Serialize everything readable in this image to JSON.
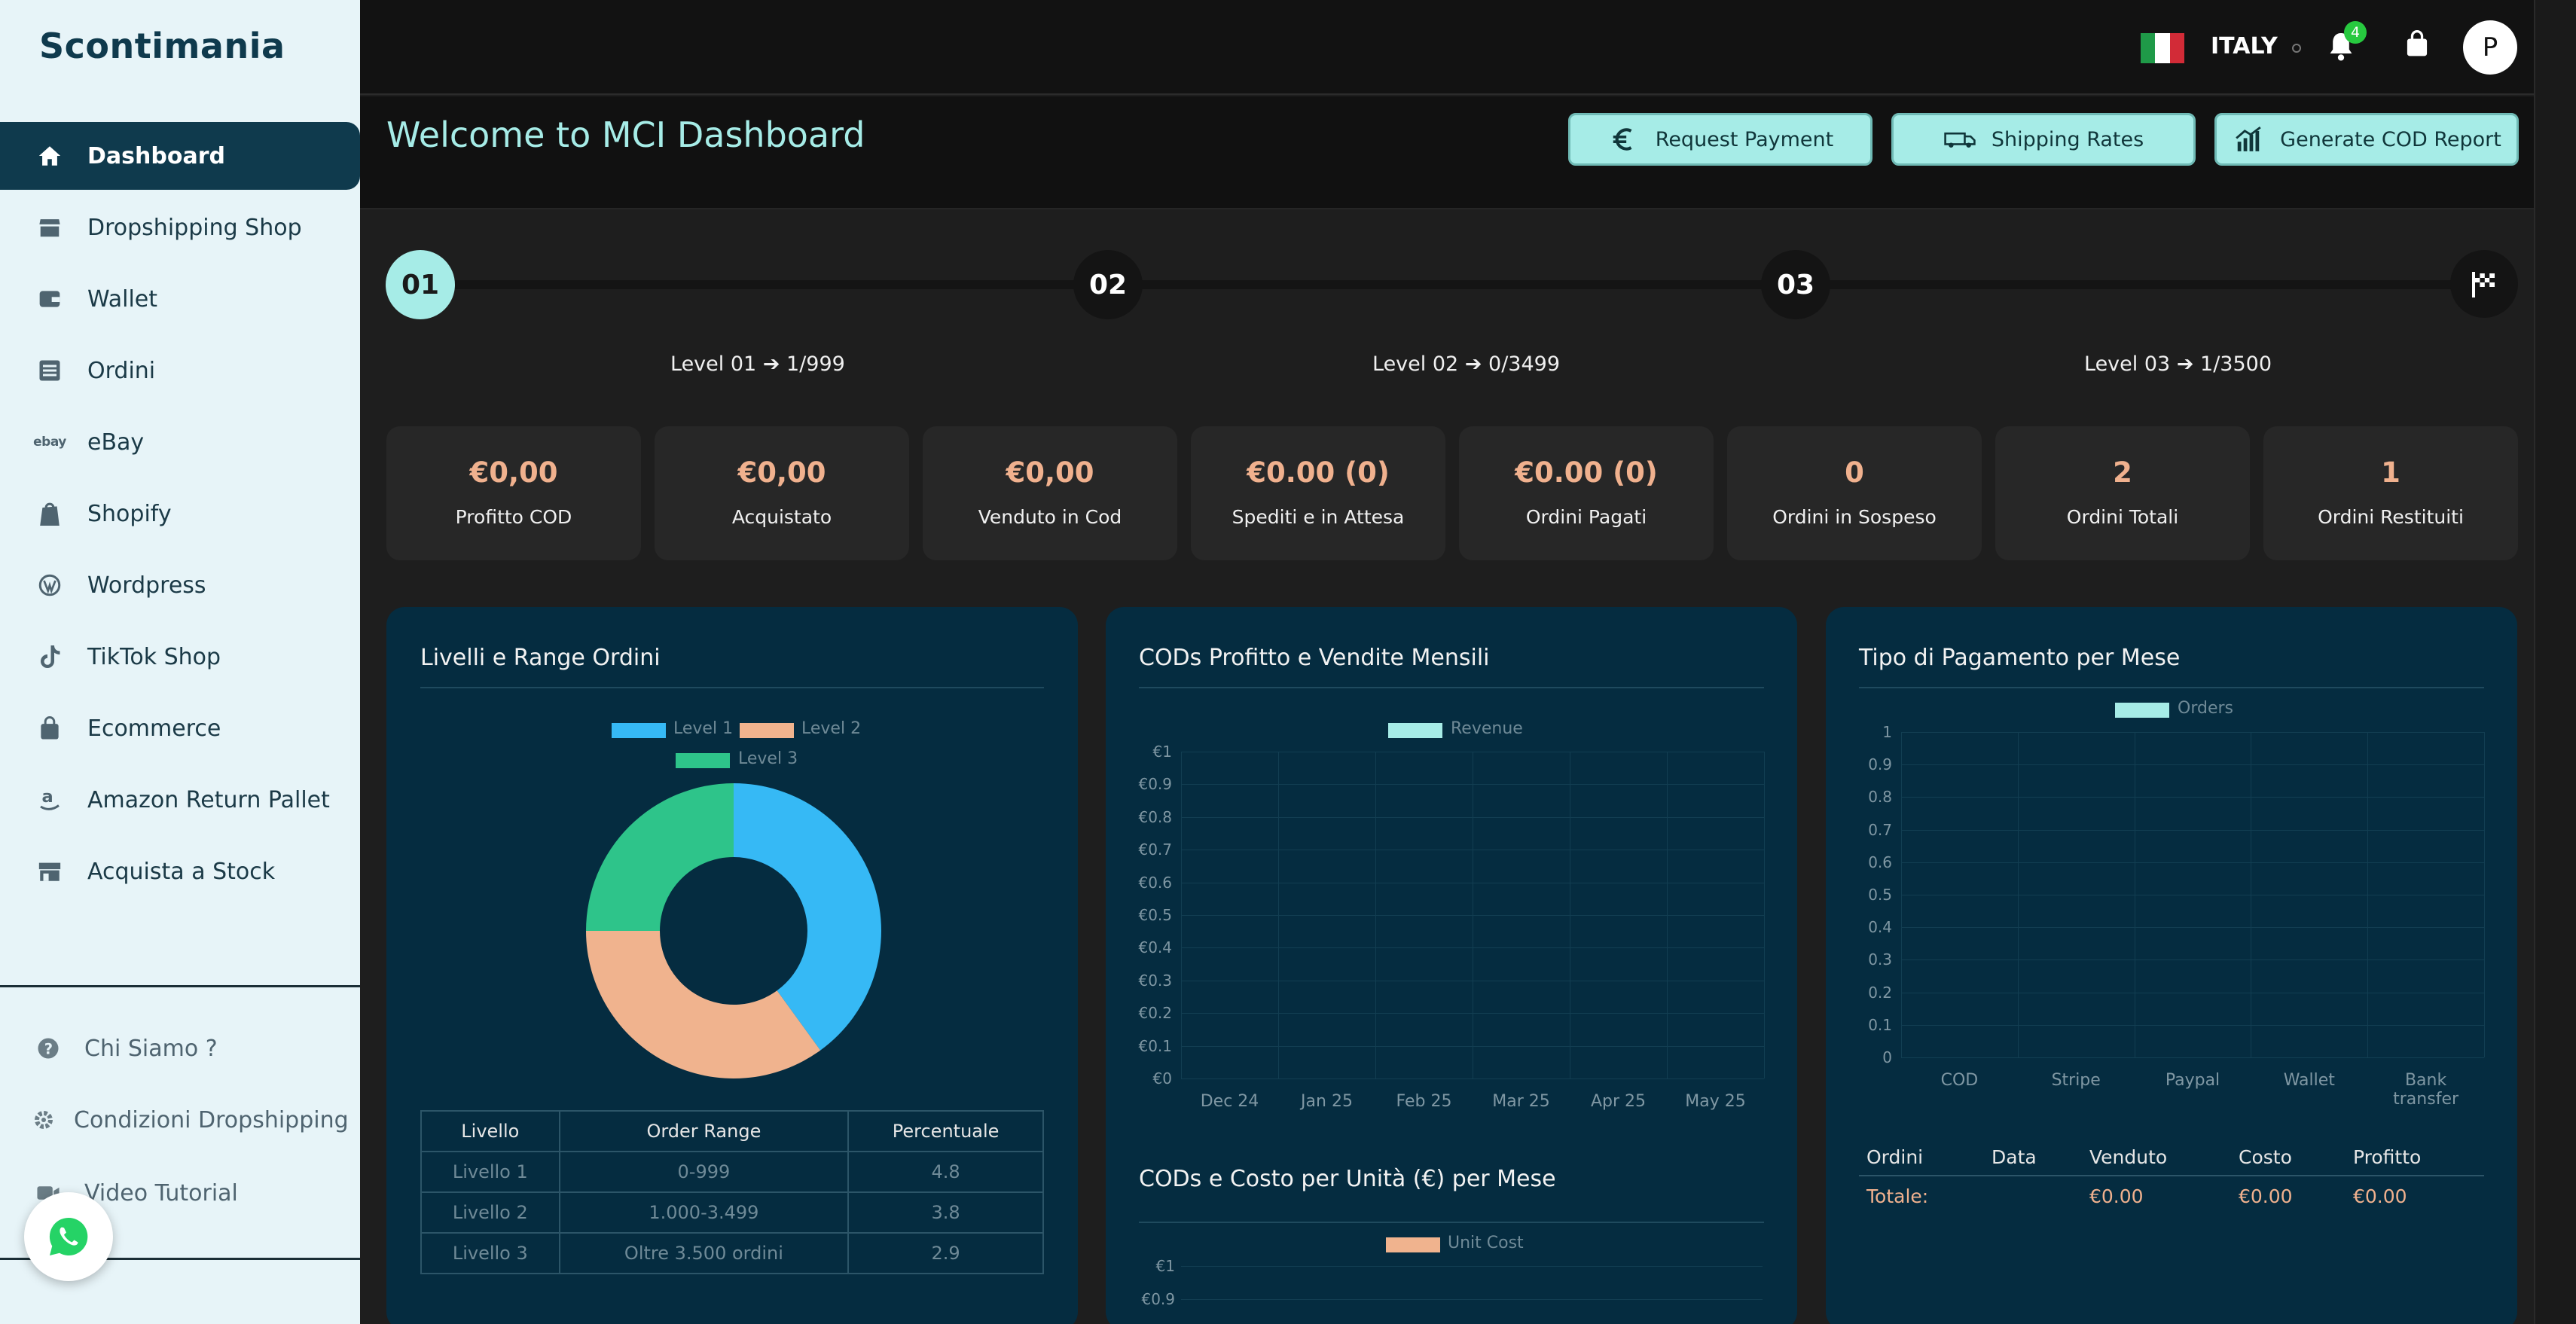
{
  "brand": {
    "logo": "Scontimania"
  },
  "sidebar": {
    "items": [
      {
        "label": "Dashboard",
        "icon": "home-icon",
        "active": true
      },
      {
        "label": "Dropshipping Shop",
        "icon": "store-icon"
      },
      {
        "label": "Wallet",
        "icon": "wallet-icon"
      },
      {
        "label": "Ordini",
        "icon": "list-icon"
      },
      {
        "label": "eBay",
        "icon": "ebay-icon"
      },
      {
        "label": "Shopify",
        "icon": "shopify-icon"
      },
      {
        "label": "Wordpress",
        "icon": "wordpress-icon"
      },
      {
        "label": "TikTok Shop",
        "icon": "tiktok-icon"
      },
      {
        "label": "Ecommerce",
        "icon": "bag-icon"
      },
      {
        "label": "Amazon Return Pallet",
        "icon": "amazon-icon"
      },
      {
        "label": "Acquista a Stock",
        "icon": "shop-icon"
      }
    ],
    "footer": [
      {
        "label": "Chi Siamo ?",
        "icon": "question-icon"
      },
      {
        "label": "Condizioni Dropshipping",
        "icon": "gear-icon"
      },
      {
        "label": "Video Tutorial",
        "icon": "video-icon"
      }
    ]
  },
  "topbar": {
    "country": "ITALY",
    "notifications": "4",
    "avatar_initial": "P"
  },
  "header": {
    "title": "Welcome to MCI Dashboard",
    "buttons": [
      {
        "label": "Request Payment",
        "icon": "euro-icon"
      },
      {
        "label": "Shipping Rates",
        "icon": "truck-icon"
      },
      {
        "label": "Generate COD Report",
        "icon": "report-chart-icon"
      }
    ]
  },
  "progress": {
    "steps": [
      "01",
      "02",
      "03"
    ],
    "levels": [
      {
        "name": "Level 01",
        "value": "1/999"
      },
      {
        "name": "Level 02",
        "value": "0/3499"
      },
      {
        "name": "Level 03",
        "value": "1/3500"
      }
    ]
  },
  "stats": [
    {
      "value": "€0,00",
      "label": "Profitto COD"
    },
    {
      "value": "€0,00",
      "label": "Acquistato"
    },
    {
      "value": "€0,00",
      "label": "Venduto in Cod"
    },
    {
      "value": "€0.00 (0)",
      "label": "Spediti e in Attesa"
    },
    {
      "value": "€0.00 (0)",
      "label": "Ordini Pagati"
    },
    {
      "value": "0",
      "label": "Ordini in Sospeso"
    },
    {
      "value": "2",
      "label": "Ordini Totali"
    },
    {
      "value": "1",
      "label": "Ordini Restituiti"
    }
  ],
  "panels": {
    "levels_title": "Livelli e Range Ordini",
    "level_table": {
      "headers": [
        "Livello",
        "Order Range",
        "Percentuale"
      ],
      "rows": [
        [
          "Livello 1",
          "0-999",
          "4.8"
        ],
        [
          "Livello 2",
          "1.000-3.499",
          "3.8"
        ],
        [
          "Livello 3",
          "Oltre 3.500 ordini",
          "2.9"
        ]
      ]
    },
    "cod_title": "CODs Profitto e Vendite Mensili",
    "unit_title": "CODs e Costo per Unità (€) per Mese",
    "unit_legend": "Unit Cost",
    "unit_yticks": [
      "€1",
      "€0.9"
    ],
    "pay_title": "Tipo di Pagamento per Mese",
    "pay_table": {
      "headers": [
        "Ordini",
        "Data",
        "Venduto",
        "Costo",
        "Profitto"
      ],
      "total_label": "Totale:",
      "totals": [
        "€0.00",
        "€0.00",
        "€0.00"
      ]
    }
  },
  "chart_data": [
    {
      "type": "pie",
      "title": "Livelli e Range Ordini",
      "categories": [
        "Level 1",
        "Level 2",
        "Level 3"
      ],
      "values": [
        40,
        35,
        25
      ],
      "colors": [
        "#36b9f5",
        "#f0b38e",
        "#2ec48a"
      ]
    },
    {
      "type": "line",
      "title": "CODs Profitto e Vendite Mensili",
      "categories": [
        "Dec 24",
        "Jan 25",
        "Feb 25",
        "Mar 25",
        "Apr 25",
        "May 25"
      ],
      "series": [
        {
          "name": "Revenue",
          "values": [
            0,
            0,
            0,
            0,
            0,
            0
          ]
        }
      ],
      "yticks": [
        "€0",
        "€0.1",
        "€0.2",
        "€0.3",
        "€0.4",
        "€0.5",
        "€0.6",
        "€0.7",
        "€0.8",
        "€0.9",
        "€1"
      ],
      "ylim": [
        0,
        1
      ]
    },
    {
      "type": "bar",
      "title": "Tipo di Pagamento per Mese",
      "categories": [
        "COD",
        "Stripe",
        "Paypal",
        "Wallet",
        "Bank transfer"
      ],
      "series": [
        {
          "name": "Orders",
          "values": [
            0,
            0,
            0,
            0,
            0
          ]
        }
      ],
      "yticks": [
        "0",
        "0.1",
        "0.2",
        "0.3",
        "0.4",
        "0.5",
        "0.6",
        "0.7",
        "0.8",
        "0.9",
        "1"
      ],
      "ylim": [
        0,
        1
      ]
    }
  ]
}
